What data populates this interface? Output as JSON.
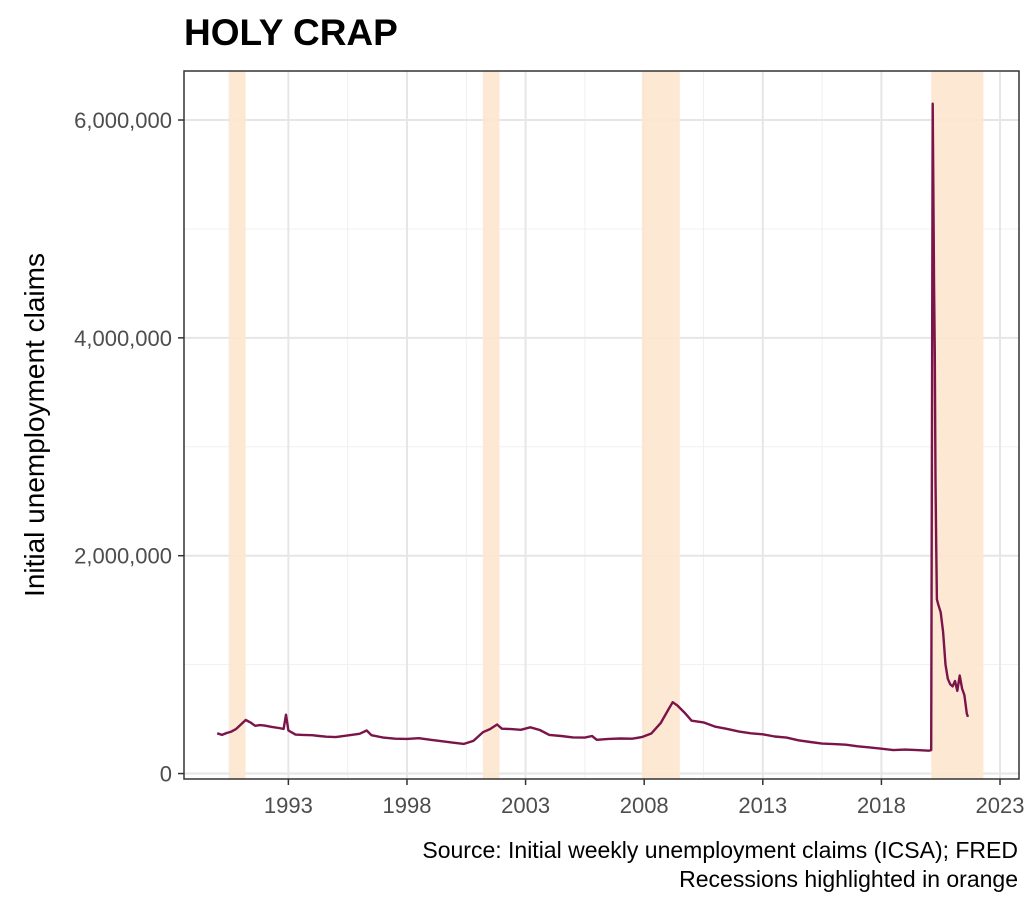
{
  "chart_data": {
    "type": "line",
    "title": "HOLY CRAP",
    "xlabel": "",
    "ylabel": "Initial unemployment claims",
    "caption_lines": [
      "Source: Initial weekly unemployment claims (ICSA); FRED",
      "Recessions highlighted in orange"
    ],
    "xlim": [
      1988.6,
      2023.8
    ],
    "ylim": [
      -50000,
      6450000
    ],
    "x_ticks": [
      1993,
      1998,
      2003,
      2008,
      2013,
      2018,
      2023
    ],
    "y_ticks": [
      0,
      2000000,
      4000000,
      6000000
    ],
    "y_tick_labels": [
      "0",
      "2,000,000",
      "4,000,000",
      "6,000,000"
    ],
    "grid": true,
    "recessions": [
      {
        "start": 1990.5,
        "end": 1991.2
      },
      {
        "start": 2001.2,
        "end": 2001.9
      },
      {
        "start": 2007.9,
        "end": 2009.5
      },
      {
        "start": 2020.1,
        "end": 2022.3
      }
    ],
    "recession_color": "#fde5cf",
    "series": [
      {
        "color": "#7a1449",
        "points": [
          [
            1990.0,
            370000
          ],
          [
            1990.2,
            355000
          ],
          [
            1990.4,
            372000
          ],
          [
            1990.6,
            385000
          ],
          [
            1990.8,
            410000
          ],
          [
            1991.0,
            450000
          ],
          [
            1991.2,
            492000
          ],
          [
            1991.4,
            470000
          ],
          [
            1991.6,
            438000
          ],
          [
            1991.8,
            445000
          ],
          [
            1992.0,
            440000
          ],
          [
            1992.3,
            428000
          ],
          [
            1992.6,
            418000
          ],
          [
            1992.8,
            410000
          ],
          [
            1992.9,
            540000
          ],
          [
            1993.0,
            395000
          ],
          [
            1993.3,
            358000
          ],
          [
            1993.6,
            355000
          ],
          [
            1994.0,
            352000
          ],
          [
            1994.3,
            345000
          ],
          [
            1994.6,
            338000
          ],
          [
            1995.0,
            335000
          ],
          [
            1995.5,
            350000
          ],
          [
            1996.0,
            365000
          ],
          [
            1996.3,
            395000
          ],
          [
            1996.5,
            352000
          ],
          [
            1997.0,
            330000
          ],
          [
            1997.5,
            320000
          ],
          [
            1998.0,
            318000
          ],
          [
            1998.5,
            325000
          ],
          [
            1999.0,
            310000
          ],
          [
            1999.5,
            296000
          ],
          [
            2000.0,
            282000
          ],
          [
            2000.4,
            272000
          ],
          [
            2000.8,
            300000
          ],
          [
            2001.2,
            380000
          ],
          [
            2001.5,
            408000
          ],
          [
            2001.8,
            450000
          ],
          [
            2002.0,
            412000
          ],
          [
            2002.4,
            408000
          ],
          [
            2002.8,
            402000
          ],
          [
            2003.2,
            425000
          ],
          [
            2003.6,
            400000
          ],
          [
            2004.0,
            355000
          ],
          [
            2004.5,
            345000
          ],
          [
            2005.0,
            332000
          ],
          [
            2005.5,
            330000
          ],
          [
            2005.8,
            345000
          ],
          [
            2006.0,
            310000
          ],
          [
            2006.5,
            318000
          ],
          [
            2007.0,
            322000
          ],
          [
            2007.5,
            320000
          ],
          [
            2007.9,
            335000
          ],
          [
            2008.3,
            368000
          ],
          [
            2008.7,
            465000
          ],
          [
            2009.0,
            580000
          ],
          [
            2009.2,
            655000
          ],
          [
            2009.4,
            625000
          ],
          [
            2009.7,
            560000
          ],
          [
            2010.0,
            485000
          ],
          [
            2010.5,
            470000
          ],
          [
            2011.0,
            430000
          ],
          [
            2011.5,
            410000
          ],
          [
            2012.0,
            385000
          ],
          [
            2012.5,
            370000
          ],
          [
            2013.0,
            360000
          ],
          [
            2013.5,
            340000
          ],
          [
            2014.0,
            330000
          ],
          [
            2014.5,
            305000
          ],
          [
            2015.0,
            290000
          ],
          [
            2015.5,
            275000
          ],
          [
            2016.0,
            270000
          ],
          [
            2016.5,
            265000
          ],
          [
            2017.0,
            250000
          ],
          [
            2017.5,
            240000
          ],
          [
            2018.0,
            228000
          ],
          [
            2018.5,
            215000
          ],
          [
            2019.0,
            220000
          ],
          [
            2019.5,
            215000
          ],
          [
            2020.0,
            210000
          ],
          [
            2020.1,
            215000
          ],
          [
            2020.13,
            2900000
          ],
          [
            2020.16,
            6150000
          ],
          [
            2020.19,
            5300000
          ],
          [
            2020.22,
            4450000
          ],
          [
            2020.25,
            3850000
          ],
          [
            2020.28,
            2700000
          ],
          [
            2020.31,
            2100000
          ],
          [
            2020.34,
            1600000
          ],
          [
            2020.4,
            1550000
          ],
          [
            2020.5,
            1480000
          ],
          [
            2020.6,
            1300000
          ],
          [
            2020.7,
            1000000
          ],
          [
            2020.8,
            870000
          ],
          [
            2020.9,
            820000
          ],
          [
            2021.0,
            800000
          ],
          [
            2021.1,
            850000
          ],
          [
            2021.2,
            760000
          ],
          [
            2021.3,
            900000
          ],
          [
            2021.4,
            780000
          ],
          [
            2021.5,
            720000
          ],
          [
            2021.6,
            550000
          ],
          [
            2021.65,
            520000
          ]
        ]
      }
    ]
  }
}
